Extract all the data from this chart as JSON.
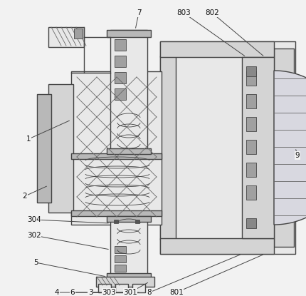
{
  "bg_color": "#f2f2f2",
  "lc": "#444444",
  "lc_thin": "#666666",
  "fc_light": "#e8e8e8",
  "fc_mid": "#d4d4d4",
  "fc_dark": "#b8b8b8",
  "fc_darker": "#a0a0a0"
}
